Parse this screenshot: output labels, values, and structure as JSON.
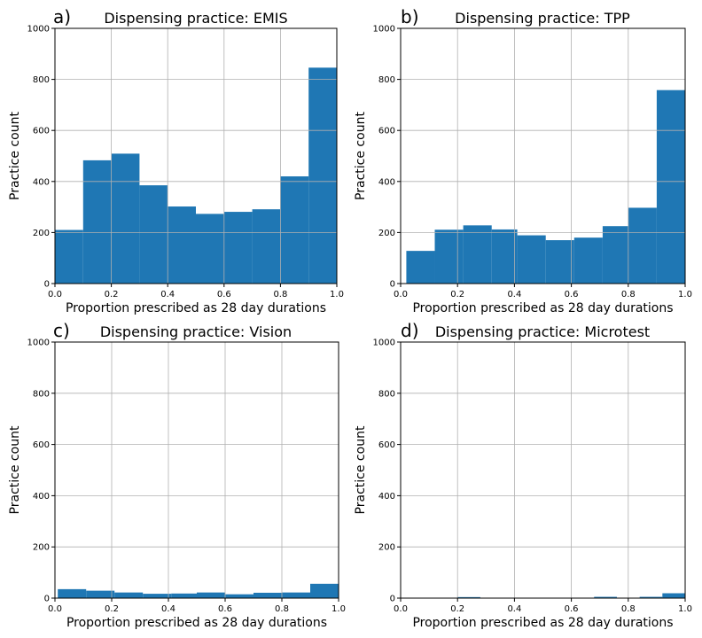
{
  "chart_data": [
    {
      "type": "bar",
      "panel_label": "a)",
      "title": "Dispensing practice: EMIS",
      "xlabel": "Proportion prescribed as 28 day durations",
      "ylabel": "Practice count",
      "xlim": [
        0,
        1
      ],
      "ylim": [
        0,
        1000
      ],
      "xticks": [
        "0.0",
        "0.2",
        "0.4",
        "0.6",
        "0.8",
        "1.0"
      ],
      "yticks": [
        "0",
        "200",
        "400",
        "600",
        "800",
        "1000"
      ],
      "grid": true,
      "color": "#1f77b4",
      "bins": [
        {
          "x0": 0.0,
          "x1": 0.1,
          "value": 210
        },
        {
          "x0": 0.1,
          "x1": 0.2,
          "value": 483
        },
        {
          "x0": 0.2,
          "x1": 0.3,
          "value": 509
        },
        {
          "x0": 0.3,
          "x1": 0.4,
          "value": 385
        },
        {
          "x0": 0.4,
          "x1": 0.5,
          "value": 302
        },
        {
          "x0": 0.5,
          "x1": 0.6,
          "value": 273
        },
        {
          "x0": 0.6,
          "x1": 0.7,
          "value": 281
        },
        {
          "x0": 0.7,
          "x1": 0.8,
          "value": 291
        },
        {
          "x0": 0.8,
          "x1": 0.9,
          "value": 420
        },
        {
          "x0": 0.9,
          "x1": 1.0,
          "value": 846
        }
      ]
    },
    {
      "type": "bar",
      "panel_label": "b)",
      "title": "Dispensing practice: TPP",
      "xlabel": "Proportion prescribed as 28 day durations",
      "ylabel": "Practice count",
      "xlim": [
        0,
        1
      ],
      "ylim": [
        0,
        1000
      ],
      "xticks": [
        "0.0",
        "0.2",
        "0.4",
        "0.6",
        "0.8",
        "1.0"
      ],
      "yticks": [
        "0",
        "200",
        "400",
        "600",
        "800",
        "1000"
      ],
      "grid": true,
      "color": "#1f77b4",
      "bins": [
        {
          "x0": 0.02,
          "x1": 0.12,
          "value": 128
        },
        {
          "x0": 0.12,
          "x1": 0.22,
          "value": 211
        },
        {
          "x0": 0.22,
          "x1": 0.32,
          "value": 228
        },
        {
          "x0": 0.32,
          "x1": 0.41,
          "value": 212
        },
        {
          "x0": 0.41,
          "x1": 0.51,
          "value": 189
        },
        {
          "x0": 0.51,
          "x1": 0.61,
          "value": 170
        },
        {
          "x0": 0.61,
          "x1": 0.71,
          "value": 180
        },
        {
          "x0": 0.71,
          "x1": 0.8,
          "value": 225
        },
        {
          "x0": 0.8,
          "x1": 0.9,
          "value": 297
        },
        {
          "x0": 0.9,
          "x1": 1.0,
          "value": 758
        }
      ]
    },
    {
      "type": "bar",
      "panel_label": "c)",
      "title": "Dispensing practice: Vision",
      "xlabel": "Proportion prescribed as 28 day durations",
      "ylabel": "Practice count",
      "xlim": [
        0,
        1
      ],
      "ylim": [
        0,
        1000
      ],
      "xticks": [
        "0.0",
        "0.2",
        "0.4",
        "0.6",
        "0.8",
        "1.0"
      ],
      "yticks": [
        "0",
        "200",
        "400",
        "600",
        "800",
        "1000"
      ],
      "grid": true,
      "color": "#1f77b4",
      "bins": [
        {
          "x0": 0.01,
          "x1": 0.11,
          "value": 35
        },
        {
          "x0": 0.11,
          "x1": 0.21,
          "value": 29
        },
        {
          "x0": 0.21,
          "x1": 0.31,
          "value": 22
        },
        {
          "x0": 0.31,
          "x1": 0.41,
          "value": 17
        },
        {
          "x0": 0.41,
          "x1": 0.5,
          "value": 18
        },
        {
          "x0": 0.5,
          "x1": 0.6,
          "value": 22
        },
        {
          "x0": 0.6,
          "x1": 0.7,
          "value": 15
        },
        {
          "x0": 0.7,
          "x1": 0.8,
          "value": 21
        },
        {
          "x0": 0.8,
          "x1": 0.9,
          "value": 22
        },
        {
          "x0": 0.9,
          "x1": 1.0,
          "value": 56
        }
      ]
    },
    {
      "type": "bar",
      "panel_label": "d)",
      "title": "Dispensing practice: Microtest",
      "xlabel": "Proportion prescribed as 28 day durations",
      "ylabel": "Practice count",
      "xlim": [
        0,
        1
      ],
      "ylim": [
        0,
        1000
      ],
      "xticks": [
        "0.0",
        "0.2",
        "0.4",
        "0.6",
        "0.8",
        "1.0"
      ],
      "yticks": [
        "0",
        "200",
        "400",
        "600",
        "800",
        "1000"
      ],
      "grid": true,
      "color": "#1f77b4",
      "bins": [
        {
          "x0": 0.2,
          "x1": 0.28,
          "value": 4
        },
        {
          "x0": 0.28,
          "x1": 0.36,
          "value": 1
        },
        {
          "x0": 0.36,
          "x1": 0.44,
          "value": 1
        },
        {
          "x0": 0.44,
          "x1": 0.52,
          "value": 1
        },
        {
          "x0": 0.52,
          "x1": 0.6,
          "value": 1
        },
        {
          "x0": 0.6,
          "x1": 0.68,
          "value": 1
        },
        {
          "x0": 0.68,
          "x1": 0.76,
          "value": 5
        },
        {
          "x0": 0.76,
          "x1": 0.84,
          "value": 1
        },
        {
          "x0": 0.84,
          "x1": 0.92,
          "value": 5
        },
        {
          "x0": 0.92,
          "x1": 1.0,
          "value": 19
        }
      ]
    }
  ]
}
